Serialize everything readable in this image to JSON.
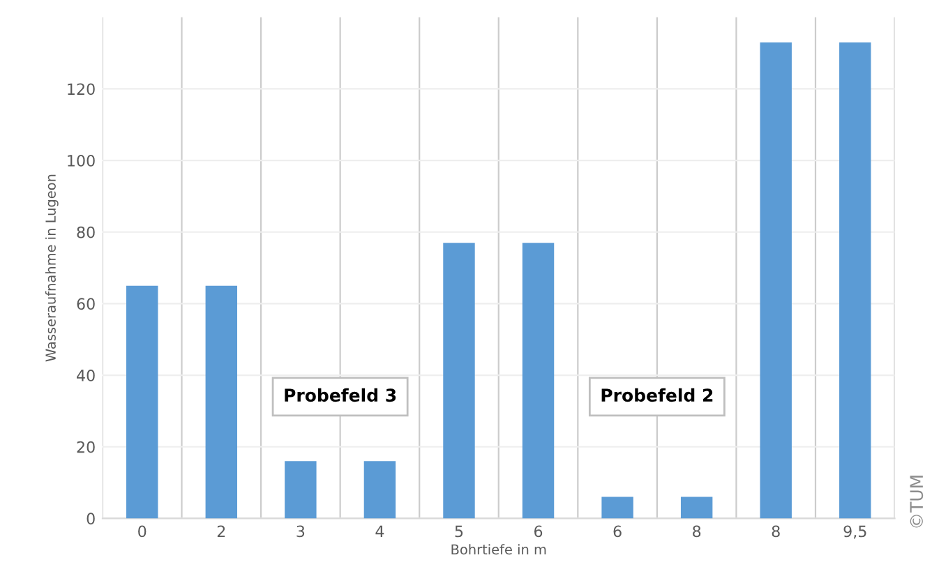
{
  "chart_data": {
    "type": "bar",
    "categories": [
      "0",
      "2",
      "3",
      "4",
      "5",
      "6",
      "6",
      "8",
      "8",
      "9,5"
    ],
    "values": [
      65,
      65,
      16,
      16,
      77,
      77,
      6,
      6,
      133,
      133
    ],
    "color": "#5b9bd5",
    "xlabel": "Bohrtiefe in m",
    "ylabel": "Wasseraufnahme in Lugeon",
    "ylim": [
      0,
      140
    ],
    "yticks": [
      0,
      20,
      40,
      60,
      80,
      100,
      120
    ],
    "grid": true,
    "annotations": [
      "Probefeld 3",
      "Probefeld 2",
      "©TUM"
    ]
  }
}
